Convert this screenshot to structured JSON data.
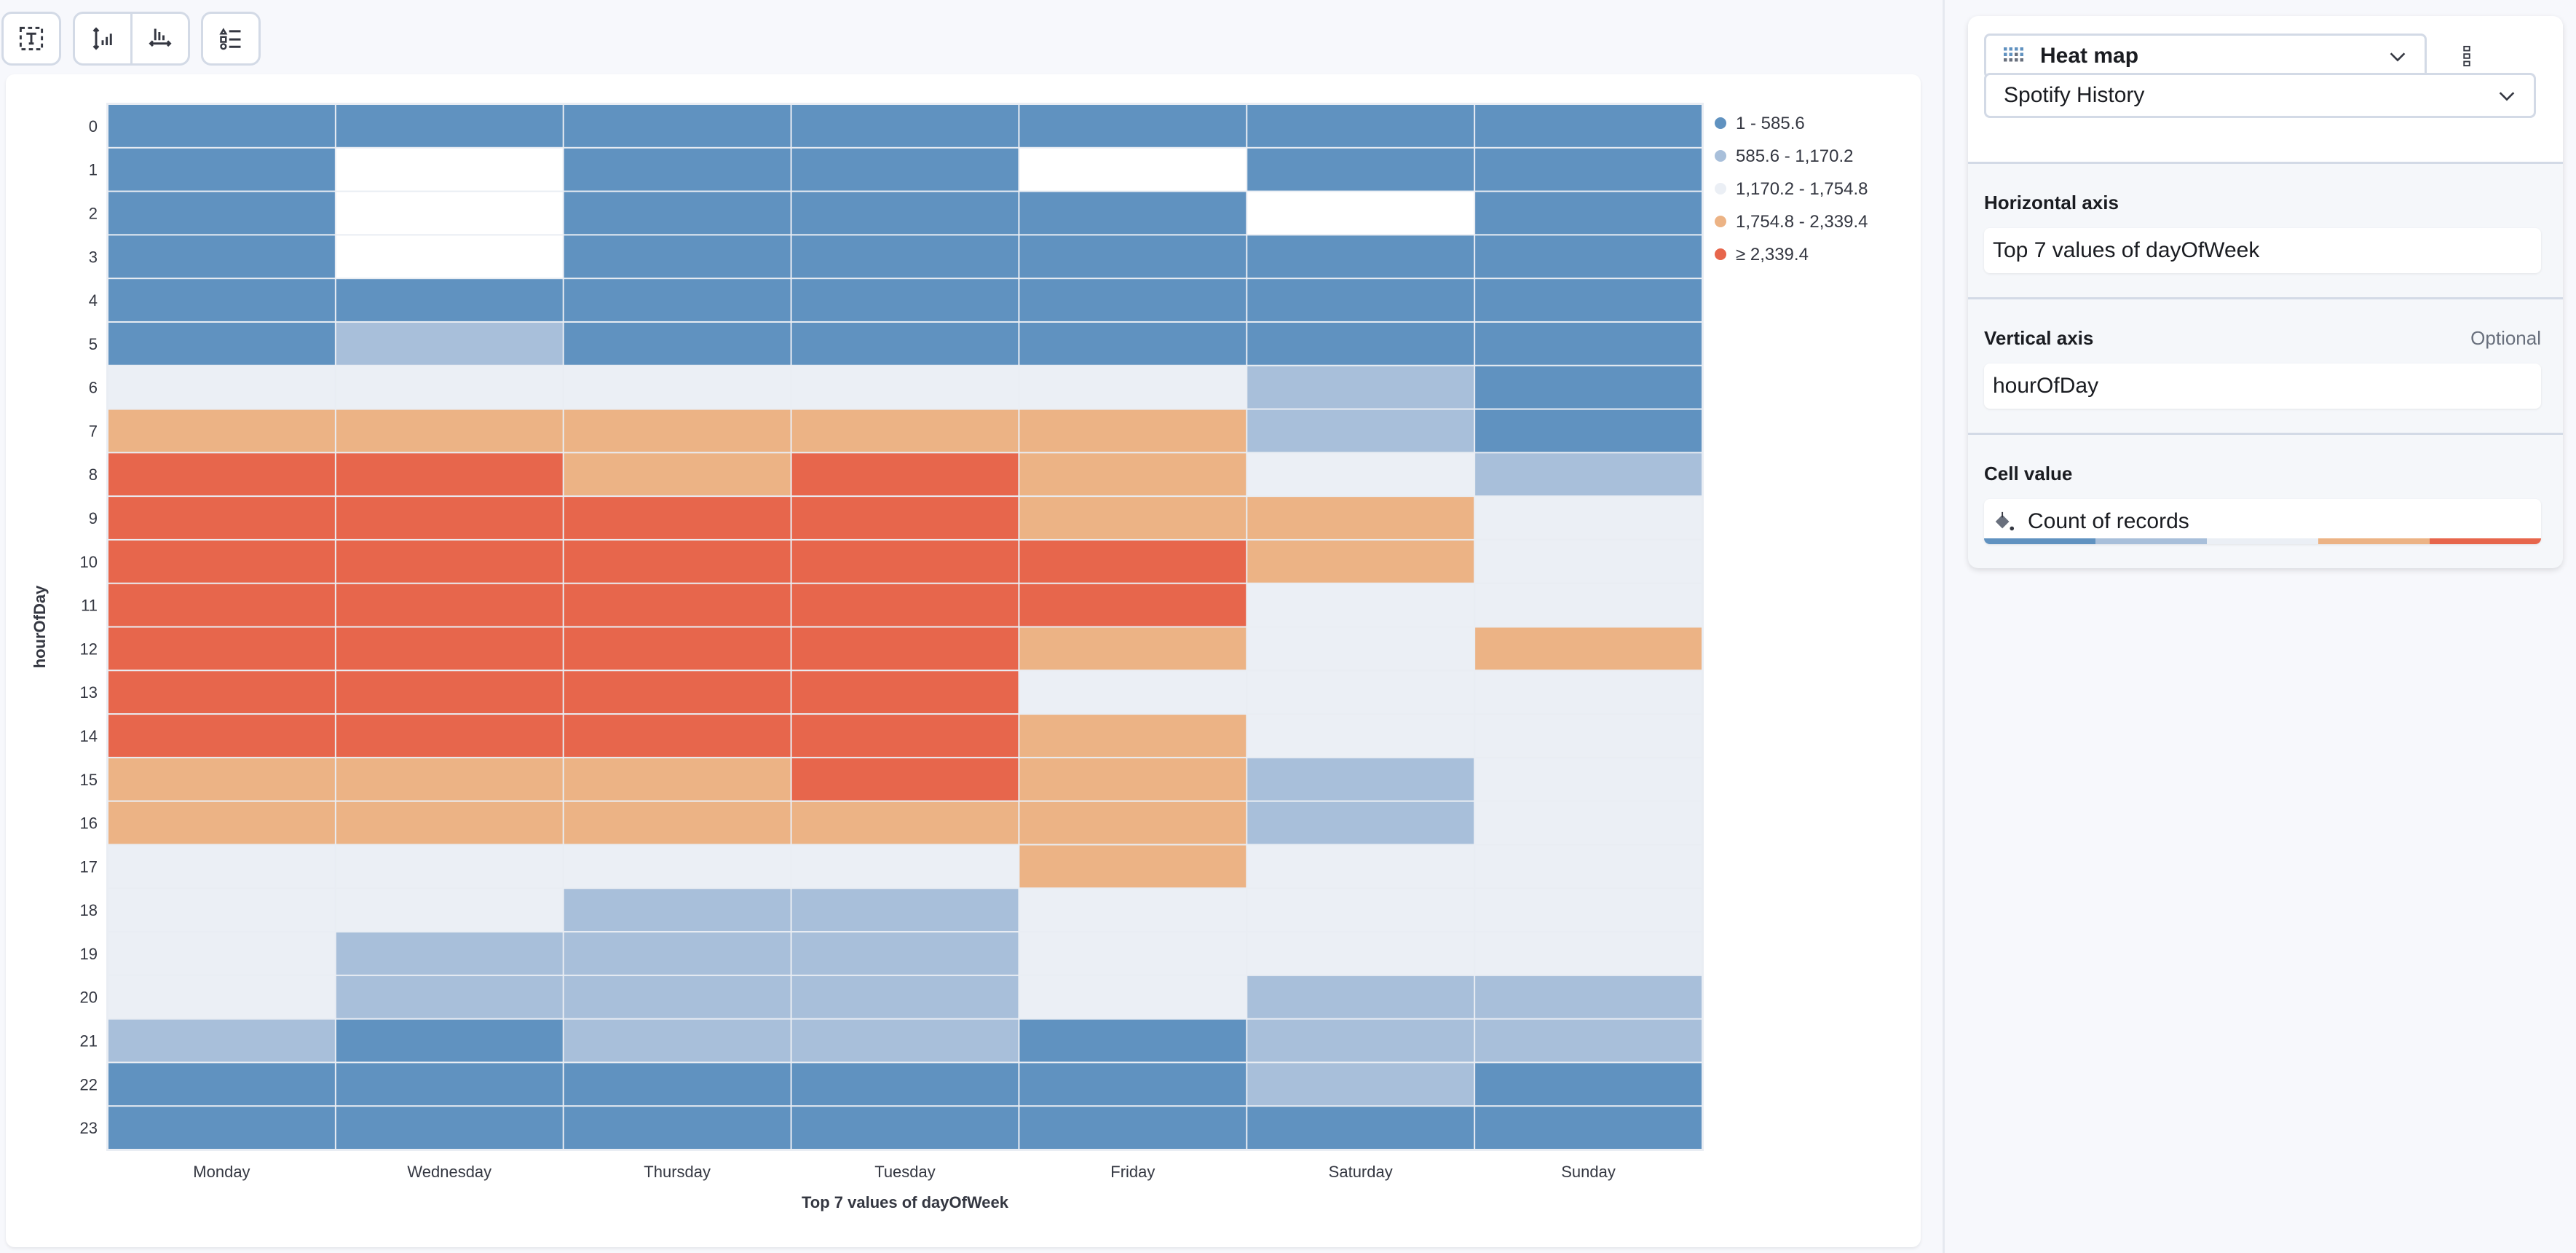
{
  "toolbar": {
    "buttons": [
      {
        "icon": "text-frame-icon"
      },
      {
        "icon": "vertical-axis-icon"
      },
      {
        "icon": "horizontal-axis-icon"
      },
      {
        "icon": "legend-icon"
      }
    ]
  },
  "chart_data": {
    "type": "heatmap",
    "xlabel": "Top 7 values of dayOfWeek",
    "ylabel": "hourOfDay",
    "x_categories": [
      "Monday",
      "Wednesday",
      "Thursday",
      "Tuesday",
      "Friday",
      "Saturday",
      "Sunday"
    ],
    "y_categories": [
      "0",
      "1",
      "2",
      "3",
      "4",
      "5",
      "6",
      "7",
      "8",
      "9",
      "10",
      "11",
      "12",
      "13",
      "14",
      "15",
      "16",
      "17",
      "18",
      "19",
      "20",
      "21",
      "22",
      "23"
    ],
    "legend_position": "right",
    "legend": [
      {
        "label": "1 - 585.6",
        "color": "#6092c0"
      },
      {
        "label": "585.6 - 1,170.2",
        "color": "#a8bfda"
      },
      {
        "label": "1,170.2 - 1,754.8",
        "color": "#ebeff5"
      },
      {
        "label": "1,754.8 - 2,339.4",
        "color": "#ecb385"
      },
      {
        "label": "≥ 2,339.4",
        "color": "#e7664c"
      }
    ],
    "value_bins_by_hour": [
      [
        0,
        0,
        0,
        0,
        0,
        0,
        0
      ],
      [
        0,
        null,
        0,
        0,
        null,
        0,
        0
      ],
      [
        0,
        null,
        0,
        0,
        0,
        null,
        0
      ],
      [
        0,
        null,
        0,
        0,
        0,
        0,
        0
      ],
      [
        0,
        0,
        0,
        0,
        0,
        0,
        0
      ],
      [
        0,
        1,
        0,
        0,
        0,
        0,
        0
      ],
      [
        2,
        2,
        2,
        2,
        2,
        1,
        0
      ],
      [
        3,
        3,
        3,
        3,
        3,
        1,
        0
      ],
      [
        4,
        4,
        3,
        4,
        3,
        2,
        1
      ],
      [
        4,
        4,
        4,
        4,
        3,
        3,
        2
      ],
      [
        4,
        4,
        4,
        4,
        4,
        3,
        2
      ],
      [
        4,
        4,
        4,
        4,
        4,
        2,
        2
      ],
      [
        4,
        4,
        4,
        4,
        3,
        2,
        3
      ],
      [
        4,
        4,
        4,
        4,
        2,
        2,
        2
      ],
      [
        4,
        4,
        4,
        4,
        3,
        2,
        2
      ],
      [
        3,
        3,
        3,
        4,
        3,
        1,
        2
      ],
      [
        3,
        3,
        3,
        3,
        3,
        1,
        2
      ],
      [
        2,
        2,
        2,
        2,
        3,
        2,
        2
      ],
      [
        2,
        2,
        1,
        1,
        2,
        2,
        2
      ],
      [
        2,
        1,
        1,
        1,
        2,
        2,
        2
      ],
      [
        2,
        1,
        1,
        1,
        2,
        1,
        1
      ],
      [
        1,
        0,
        1,
        1,
        0,
        1,
        1
      ],
      [
        0,
        0,
        0,
        0,
        0,
        1,
        0
      ],
      [
        0,
        0,
        0,
        0,
        0,
        0,
        0
      ]
    ]
  },
  "side": {
    "chart_type": "Heat map",
    "chart_type_icon": "heatmap-icon",
    "data_view": "Spotify History",
    "horizontal_axis": {
      "label": "Horizontal axis",
      "value": "Top 7 values of dayOfWeek"
    },
    "vertical_axis": {
      "label": "Vertical axis",
      "optional": "Optional",
      "value": "hourOfDay"
    },
    "cell_value": {
      "label": "Cell value",
      "value": "Count of records"
    }
  }
}
